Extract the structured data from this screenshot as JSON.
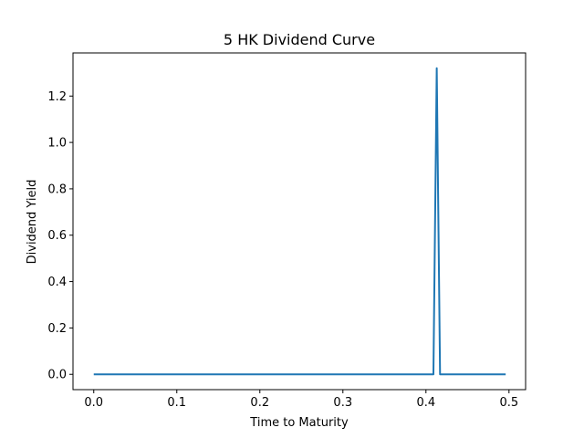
{
  "chart_data": {
    "type": "line",
    "title": "5 HK Dividend Curve",
    "xlabel": "Time to Maturity",
    "ylabel": "Dividend Yield",
    "xlim": [
      -0.025,
      0.52
    ],
    "ylim": [
      -0.066,
      1.386
    ],
    "x_ticks": [
      0.0,
      0.1,
      0.2,
      0.3,
      0.4,
      0.5
    ],
    "x_tick_labels": [
      "0.0",
      "0.1",
      "0.2",
      "0.3",
      "0.4",
      "0.5"
    ],
    "y_ticks": [
      0.0,
      0.2,
      0.4,
      0.6,
      0.8,
      1.0,
      1.2
    ],
    "y_tick_labels": [
      "0.0",
      "0.2",
      "0.4",
      "0.6",
      "0.8",
      "1.0",
      "1.2"
    ],
    "grid": false,
    "legend": "none",
    "series": [
      {
        "color": "#1f77b4",
        "x": [
          0.0,
          0.409,
          0.413,
          0.417,
          0.496
        ],
        "y": [
          0.0,
          0.0,
          1.32,
          0.0,
          0.0
        ]
      }
    ]
  }
}
